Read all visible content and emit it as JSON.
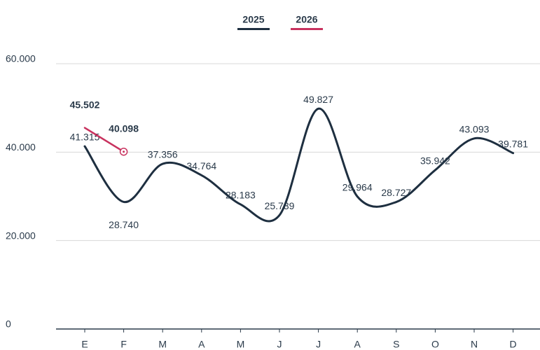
{
  "chart_data": {
    "type": "line",
    "categories": [
      "E",
      "F",
      "M",
      "A",
      "M",
      "J",
      "J",
      "A",
      "S",
      "O",
      "N",
      "D"
    ],
    "series": [
      {
        "name": "2025",
        "color": "#1e2f40",
        "values": [
          41315,
          28740,
          37356,
          34764,
          28183,
          25739,
          49827,
          29964,
          28727,
          35942,
          43093,
          39781
        ],
        "value_labels": [
          "41.315",
          "28.740",
          "37.356",
          "34.764",
          "28.183",
          "25.739",
          "49.827",
          "29.964",
          "28.727",
          "35.942",
          "43.093",
          "39.781"
        ]
      },
      {
        "name": "2026",
        "color": "#c8325e",
        "values": [
          45502,
          40098,
          null,
          null,
          null,
          null,
          null,
          null,
          null,
          null,
          null,
          null
        ],
        "value_labels": [
          "45.502",
          "40.098",
          null,
          null,
          null,
          null,
          null,
          null,
          null,
          null,
          null,
          null
        ]
      }
    ],
    "ylim": [
      0,
      60000
    ],
    "yticks": [
      0,
      {
        "value": 20000,
        "label": "20.000"
      },
      {
        "value": 40000,
        "label": "40.000"
      },
      {
        "value": 60000,
        "label": "60.000"
      }
    ],
    "grid": true
  }
}
